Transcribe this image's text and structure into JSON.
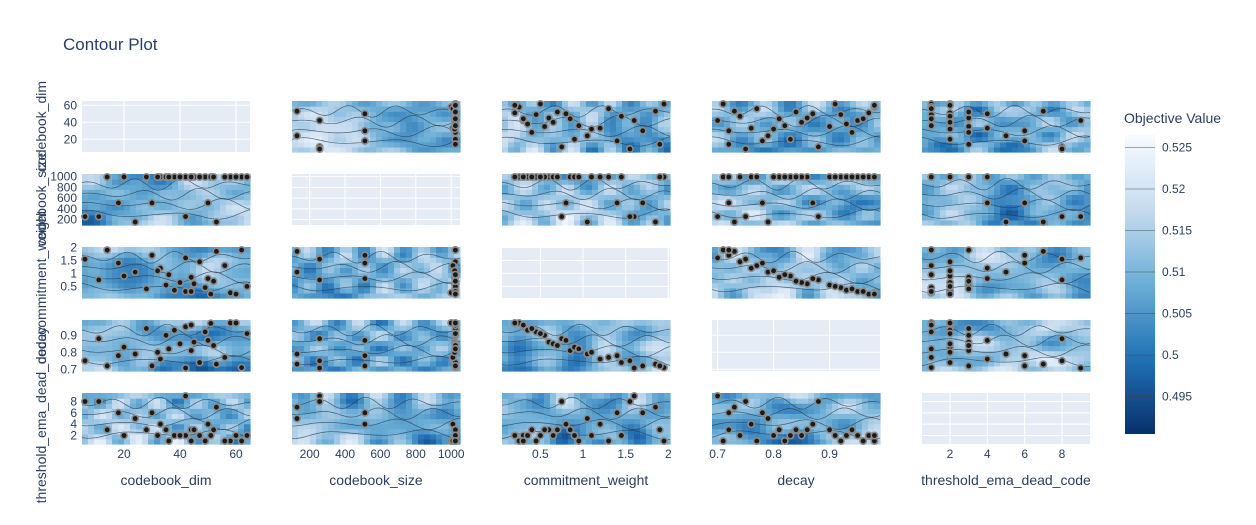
{
  "chart_data": {
    "type": "contour",
    "title": "Contour Plot",
    "params": [
      "codebook_dim",
      "codebook_size",
      "commitment_weight",
      "decay",
      "threshold_ema_dead_code"
    ],
    "axis_titles": [
      "codebook_dim",
      "codebook_size",
      "commitment_weight",
      "decay",
      "threshold_ema_dead_code"
    ],
    "ranges": [
      [
        5,
        65
      ],
      [
        100,
        1050
      ],
      [
        0.05,
        2.02
      ],
      [
        0.69,
        0.99
      ],
      [
        0.5,
        9.5
      ]
    ],
    "ticks": [
      [
        20,
        40,
        60
      ],
      [
        200,
        400,
        600,
        800,
        1000
      ],
      [
        0.5,
        1,
        1.5,
        2
      ],
      [
        0.7,
        0.8,
        0.9
      ],
      [
        2,
        4,
        6,
        8
      ]
    ],
    "x_tick_labels": [
      [
        "20",
        "40",
        "60"
      ],
      [
        "200",
        "400",
        "600",
        "800",
        "1000"
      ],
      [
        "0.5",
        "1",
        "1.5",
        "2"
      ],
      [
        "0.7",
        "0.8",
        "0.9"
      ],
      [
        "2",
        "4",
        "6",
        "8"
      ]
    ],
    "y_tick_labels": [
      [
        "20",
        "40",
        "60"
      ],
      [
        "200",
        "400",
        "600",
        "800",
        "1000"
      ],
      [
        "0.5",
        "1",
        "1.5",
        "2"
      ],
      [
        "0.7",
        "0.8",
        "0.9"
      ],
      [
        "2",
        "4",
        "6",
        "8"
      ]
    ],
    "colorbar": {
      "title": "Objective Value",
      "range": [
        0.4905,
        0.5265
      ],
      "tick_values": [
        0.495,
        0.5,
        0.505,
        0.51,
        0.515,
        0.52,
        0.525
      ],
      "tick_labels": [
        "0.495",
        "0.5",
        "0.505",
        "0.51",
        "0.515",
        "0.52",
        "0.525"
      ],
      "colorscale": [
        "#08306b",
        "#2171b5",
        "#6baed6",
        "#c6dbef",
        "#f7fbff"
      ]
    },
    "trials": [
      {
        "codebook_dim": 42,
        "codebook_size": 1024,
        "commitment_weight": 0.3,
        "decay": 0.95,
        "threshold_ema_dead_code": 2
      },
      {
        "codebook_dim": 49,
        "codebook_size": 1024,
        "commitment_weight": 0.45,
        "decay": 0.92,
        "threshold_ema_dead_code": 1
      },
      {
        "codebook_dim": 44,
        "codebook_size": 1020,
        "commitment_weight": 0.85,
        "decay": 0.81,
        "threshold_ema_dead_code": 3
      },
      {
        "codebook_dim": 33,
        "codebook_size": 1010,
        "commitment_weight": 1.2,
        "decay": 0.76,
        "threshold_ema_dead_code": 4
      },
      {
        "codebook_dim": 51,
        "codebook_size": 1024,
        "commitment_weight": 0.2,
        "decay": 0.97,
        "threshold_ema_dead_code": 2
      },
      {
        "codebook_dim": 30,
        "codebook_size": 512,
        "commitment_weight": 1.7,
        "decay": 0.72,
        "threshold_ema_dead_code": 6
      },
      {
        "codebook_dim": 11,
        "codebook_size": 256,
        "commitment_weight": 0.75,
        "decay": 0.88,
        "threshold_ema_dead_code": 8
      },
      {
        "codebook_dim": 62,
        "codebook_size": 1024,
        "commitment_weight": 1.95,
        "decay": 0.71,
        "threshold_ema_dead_code": 1
      },
      {
        "codebook_dim": 45,
        "codebook_size": 1020,
        "commitment_weight": 0.6,
        "decay": 0.86,
        "threshold_ema_dead_code": 3
      },
      {
        "codebook_dim": 38,
        "codebook_size": 1024,
        "commitment_weight": 0.35,
        "decay": 0.93,
        "threshold_ema_dead_code": 2
      },
      {
        "codebook_dim": 24,
        "codebook_size": 128,
        "commitment_weight": 1.05,
        "decay": 0.79,
        "threshold_ema_dead_code": 5
      },
      {
        "codebook_dim": 58,
        "codebook_size": 1000,
        "commitment_weight": 0.25,
        "decay": 0.98,
        "threshold_ema_dead_code": 1
      },
      {
        "codebook_dim": 47,
        "codebook_size": 1024,
        "commitment_weight": 1.45,
        "decay": 0.74,
        "threshold_ema_dead_code": 2
      },
      {
        "codebook_dim": 35,
        "codebook_size": 1024,
        "commitment_weight": 0.55,
        "decay": 0.9,
        "threshold_ema_dead_code": 3
      },
      {
        "codebook_dim": 53,
        "codebook_size": 128,
        "commitment_weight": 1.85,
        "decay": 0.73,
        "threshold_ema_dead_code": 7
      },
      {
        "codebook_dim": 20,
        "codebook_size": 1024,
        "commitment_weight": 0.9,
        "decay": 0.83,
        "threshold_ema_dead_code": 2
      },
      {
        "codebook_dim": 42,
        "codebook_size": 256,
        "commitment_weight": 1.6,
        "decay": 0.7,
        "threshold_ema_dead_code": 9
      },
      {
        "codebook_dim": 28,
        "codebook_size": 1024,
        "commitment_weight": 0.4,
        "decay": 0.94,
        "threshold_ema_dead_code": 3
      },
      {
        "codebook_dim": 56,
        "codebook_size": 1010,
        "commitment_weight": 1.3,
        "decay": 0.77,
        "threshold_ema_dead_code": 1
      },
      {
        "codebook_dim": 40,
        "codebook_size": 1024,
        "commitment_weight": 0.65,
        "decay": 0.85,
        "threshold_ema_dead_code": 2
      },
      {
        "codebook_dim": 6,
        "codebook_size": 256,
        "commitment_weight": 1.55,
        "decay": 0.75,
        "threshold_ema_dead_code": 8
      },
      {
        "codebook_dim": 64,
        "codebook_size": 1024,
        "commitment_weight": 0.5,
        "decay": 0.91,
        "threshold_ema_dead_code": 2
      },
      {
        "codebook_dim": 14,
        "codebook_size": 1024,
        "commitment_weight": 1.9,
        "decay": 0.72,
        "threshold_ema_dead_code": 3
      },
      {
        "codebook_dim": 50,
        "codebook_size": 512,
        "commitment_weight": 0.8,
        "decay": 0.87,
        "threshold_ema_dead_code": 4
      },
      {
        "codebook_dim": 44,
        "codebook_size": 1024,
        "commitment_weight": 0.3,
        "decay": 0.96,
        "threshold_ema_dead_code": 1
      },
      {
        "codebook_dim": 32,
        "codebook_size": 1020,
        "commitment_weight": 1.1,
        "decay": 0.8,
        "threshold_ema_dead_code": 2
      },
      {
        "codebook_dim": 52,
        "codebook_size": 1024,
        "commitment_weight": 0.7,
        "decay": 0.84,
        "threshold_ema_dead_code": 3
      },
      {
        "codebook_dim": 18,
        "codebook_size": 512,
        "commitment_weight": 1.4,
        "decay": 0.78,
        "threshold_ema_dead_code": 6
      },
      {
        "codebook_dim": 60,
        "codebook_size": 1024,
        "commitment_weight": 0.2,
        "decay": 0.98,
        "threshold_ema_dead_code": 2
      },
      {
        "codebook_dim": 36,
        "codebook_size": 1024,
        "commitment_weight": 0.95,
        "decay": 0.82,
        "threshold_ema_dead_code": 1
      }
    ]
  }
}
